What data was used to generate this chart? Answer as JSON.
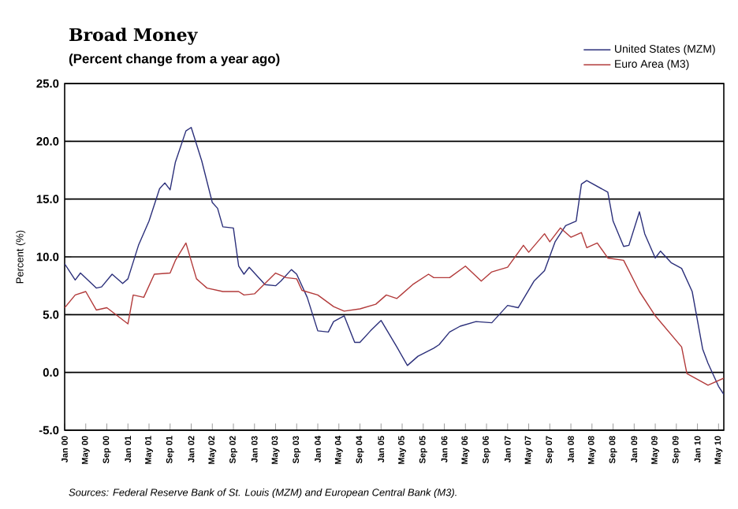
{
  "chart_data": {
    "type": "line",
    "title": "Broad Money",
    "subtitle": "(Percent change from a year ago)",
    "ylabel": "Percent (%)",
    "annotations": [
      "Sources:  Federal Reserve Bank of St. Louis (MZM) and European Central Bank (M3)."
    ],
    "xlim": [
      "2000-01",
      "2010-06"
    ],
    "ylim": [
      -5,
      25
    ],
    "yticks": [
      {
        "value": -5,
        "label": "-5.0"
      },
      {
        "value": 0,
        "label": "0.0"
      },
      {
        "value": 5,
        "label": "5.0"
      },
      {
        "value": 10,
        "label": "10.0"
      },
      {
        "value": 15,
        "label": "15.0"
      },
      {
        "value": 20,
        "label": "20.0"
      },
      {
        "value": 25,
        "label": "25.0"
      }
    ],
    "xticks": [
      {
        "value": "2000-01",
        "label": "Jan 00"
      },
      {
        "value": "2000-05",
        "label": "May 00"
      },
      {
        "value": "2000-09",
        "label": "Sep 00"
      },
      {
        "value": "2001-01",
        "label": "Jan 01"
      },
      {
        "value": "2001-05",
        "label": "May 01"
      },
      {
        "value": "2001-09",
        "label": "Sep 01"
      },
      {
        "value": "2002-01",
        "label": "Jan 02"
      },
      {
        "value": "2002-05",
        "label": "May 02"
      },
      {
        "value": "2002-09",
        "label": "Sep 02"
      },
      {
        "value": "2003-01",
        "label": "Jan 03"
      },
      {
        "value": "2003-05",
        "label": "May 03"
      },
      {
        "value": "2003-09",
        "label": "Sep 03"
      },
      {
        "value": "2004-01",
        "label": "Jan 04"
      },
      {
        "value": "2004-05",
        "label": "May 04"
      },
      {
        "value": "2004-09",
        "label": "Sep 04"
      },
      {
        "value": "2005-01",
        "label": "Jan 05"
      },
      {
        "value": "2005-05",
        "label": "May 05"
      },
      {
        "value": "2005-09",
        "label": "Sep 05"
      },
      {
        "value": "2006-01",
        "label": "Jan 06"
      },
      {
        "value": "2006-05",
        "label": "May 06"
      },
      {
        "value": "2006-09",
        "label": "Sep 06"
      },
      {
        "value": "2007-01",
        "label": "Jan 07"
      },
      {
        "value": "2007-05",
        "label": "May 07"
      },
      {
        "value": "2007-09",
        "label": "Sep 07"
      },
      {
        "value": "2008-01",
        "label": "Jan 08"
      },
      {
        "value": "2008-05",
        "label": "May 08"
      },
      {
        "value": "2008-09",
        "label": "Sep 08"
      },
      {
        "value": "2009-01",
        "label": "Jan 09"
      },
      {
        "value": "2009-05",
        "label": "May 09"
      },
      {
        "value": "2009-09",
        "label": "Sep 09"
      },
      {
        "value": "2010-01",
        "label": "Jan 10"
      },
      {
        "value": "2010-05",
        "label": "May 10"
      }
    ],
    "grid": "y",
    "legend": "top right",
    "series": [
      {
        "name": "United States (MZM)",
        "color": "#2b2f7a",
        "x": [
          "2000-01",
          "2000-03",
          "2000-04",
          "2000-07",
          "2000-08",
          "2000-10",
          "2000-12",
          "2001-01",
          "2001-03",
          "2001-05",
          "2001-07",
          "2001-08",
          "2001-09",
          "2001-10",
          "2001-12",
          "2002-01",
          "2002-03",
          "2002-05",
          "2002-06",
          "2002-07",
          "2002-09",
          "2002-10",
          "2002-11",
          "2002-12",
          "2003-03",
          "2003-05",
          "2003-06",
          "2003-08",
          "2003-09",
          "2003-11",
          "2004-01",
          "2004-03",
          "2004-04",
          "2004-06",
          "2004-08",
          "2004-09",
          "2004-11",
          "2005-01",
          "2005-04",
          "2005-06",
          "2005-08",
          "2005-11",
          "2005-12",
          "2006-02",
          "2006-04",
          "2006-07",
          "2006-10",
          "2007-01",
          "2007-03",
          "2007-06",
          "2007-08",
          "2007-10",
          "2007-12",
          "2008-02",
          "2008-03",
          "2008-04",
          "2008-08",
          "2008-09",
          "2008-11",
          "2008-12",
          "2009-02",
          "2009-03",
          "2009-05",
          "2009-06",
          "2009-08",
          "2009-10",
          "2009-12",
          "2010-02",
          "2010-03",
          "2010-05",
          "2010-06"
        ],
        "values": [
          9.4,
          8.0,
          8.6,
          7.3,
          7.4,
          8.5,
          7.7,
          8.1,
          11.0,
          13.1,
          15.9,
          16.4,
          15.8,
          18.2,
          20.9,
          21.2,
          18.3,
          14.7,
          14.2,
          12.6,
          12.5,
          9.2,
          8.5,
          9.1,
          7.6,
          7.5,
          7.9,
          8.9,
          8.5,
          6.5,
          3.6,
          3.5,
          4.4,
          4.9,
          2.6,
          2.6,
          3.6,
          4.5,
          2.2,
          0.6,
          1.4,
          2.1,
          2.4,
          3.5,
          4.0,
          4.4,
          4.3,
          5.8,
          5.6,
          7.9,
          8.8,
          11.3,
          12.7,
          13.1,
          16.3,
          16.6,
          15.6,
          13.1,
          10.9,
          11.0,
          13.9,
          12.0,
          9.9,
          10.5,
          9.5,
          9.0,
          7.0,
          2.0,
          0.8,
          -1.2,
          -1.9
        ]
      },
      {
        "name": "Euro Area (M3)",
        "color": "#b23a3a",
        "x": [
          "2000-01",
          "2000-03",
          "2000-05",
          "2000-07",
          "2000-09",
          "2000-11",
          "2001-01",
          "2001-02",
          "2001-04",
          "2001-06",
          "2001-09",
          "2001-10",
          "2001-12",
          "2002-02",
          "2002-04",
          "2002-07",
          "2002-10",
          "2002-11",
          "2003-01",
          "2003-05",
          "2003-07",
          "2003-09",
          "2003-10",
          "2004-01",
          "2004-04",
          "2004-06",
          "2004-09",
          "2004-12",
          "2005-02",
          "2005-04",
          "2005-07",
          "2005-10",
          "2005-11",
          "2006-02",
          "2006-05",
          "2006-08",
          "2006-10",
          "2007-01",
          "2007-04",
          "2007-05",
          "2007-08",
          "2007-09",
          "2007-11",
          "2008-01",
          "2008-03",
          "2008-04",
          "2008-06",
          "2008-08",
          "2008-11",
          "2009-02",
          "2009-05",
          "2009-10",
          "2009-11",
          "2010-03",
          "2010-06"
        ],
        "values": [
          5.6,
          6.7,
          7.0,
          5.4,
          5.6,
          4.9,
          4.2,
          6.7,
          6.5,
          8.5,
          8.6,
          9.7,
          11.2,
          8.1,
          7.3,
          7.0,
          7.0,
          6.7,
          6.8,
          8.6,
          8.2,
          8.1,
          7.1,
          6.7,
          5.7,
          5.3,
          5.5,
          5.9,
          6.7,
          6.4,
          7.6,
          8.5,
          8.2,
          8.2,
          9.2,
          7.9,
          8.7,
          9.1,
          11.0,
          10.4,
          12.0,
          11.3,
          12.5,
          11.7,
          12.1,
          10.8,
          11.2,
          9.9,
          9.7,
          7.0,
          4.9,
          2.2,
          -0.1,
          -1.1,
          -0.5
        ]
      }
    ]
  }
}
